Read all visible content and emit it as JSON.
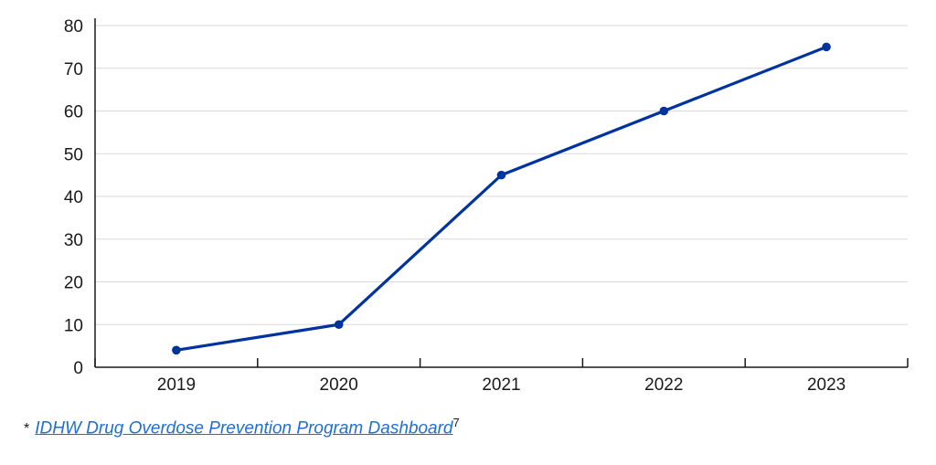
{
  "chart_data": {
    "type": "line",
    "title": "",
    "xlabel": "",
    "ylabel": "",
    "categories": [
      "2019",
      "2020",
      "2021",
      "2022",
      "2023"
    ],
    "series": [
      {
        "values": [
          4,
          10,
          45,
          60,
          75
        ]
      }
    ],
    "ylim": [
      0,
      80
    ],
    "yticks": [
      0,
      10,
      20,
      30,
      40,
      50,
      60,
      70,
      80
    ],
    "grid": true,
    "legend": "none",
    "line_color": "#0033a0",
    "grid_color": "#d9d9d9",
    "axis_color": "#1a1a1a"
  },
  "footnote": {
    "marker": "*",
    "link_text": "IDHW Drug Overdose Prevention Program Dashboard",
    "superscript": "7",
    "link_color": "#1f6fd1"
  }
}
